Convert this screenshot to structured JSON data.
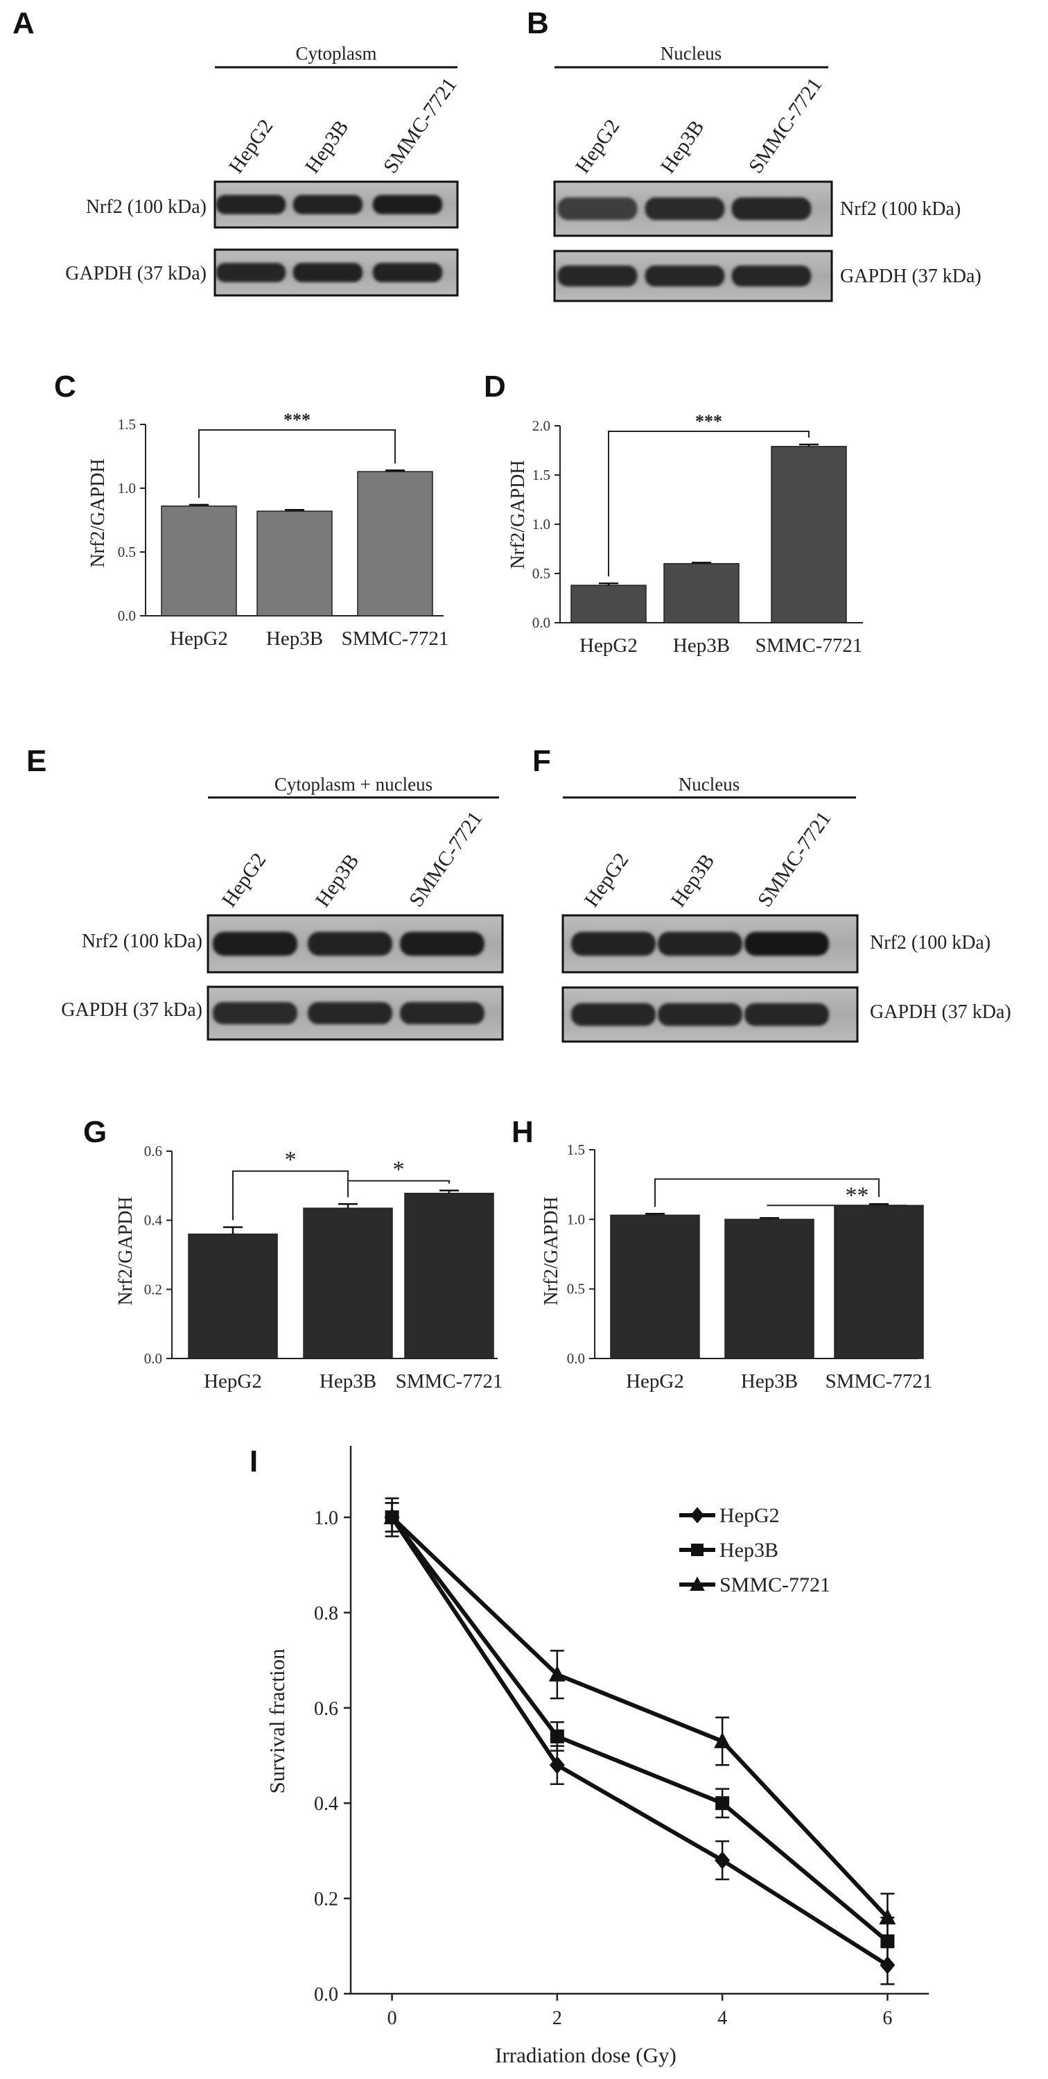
{
  "panels": {
    "A": {
      "letter": "A",
      "header": "Cytoplasm",
      "lanes": [
        "HepG2",
        "Hep3B",
        "SMMC-7721"
      ],
      "rows": [
        {
          "label": "Nrf2 (100 kDa)",
          "intensity": [
            0.85,
            0.85,
            0.9
          ]
        },
        {
          "label": "GAPDH (37 kDa)",
          "intensity": [
            0.8,
            0.85,
            0.85
          ]
        }
      ]
    },
    "B": {
      "letter": "B",
      "header": "Nucleus",
      "lanes": [
        "HepG2",
        "Hep3B",
        "SMMC-7721"
      ],
      "rows": [
        {
          "label": "Nrf2 (100 kDa)",
          "intensity": [
            0.55,
            0.75,
            0.8
          ]
        },
        {
          "label": "GAPDH (37 kDa)",
          "intensity": [
            0.8,
            0.8,
            0.8
          ]
        }
      ]
    },
    "E": {
      "letter": "E",
      "header": "Cytoplasm + nucleus",
      "lanes": [
        "HepG2",
        "Hep3B",
        "SMMC-7721"
      ],
      "rows": [
        {
          "label": "Nrf2 (100 kDa)",
          "intensity": [
            0.9,
            0.85,
            0.9
          ]
        },
        {
          "label": "GAPDH (37 kDa)",
          "intensity": [
            0.75,
            0.8,
            0.8
          ]
        }
      ]
    },
    "F": {
      "letter": "F",
      "header": "Nucleus",
      "lanes": [
        "HepG2",
        "Hep3B",
        "SMMC-7721"
      ],
      "rows": [
        {
          "label": "Nrf2 (100 kDa)",
          "intensity": [
            0.85,
            0.85,
            0.95
          ]
        },
        {
          "label": "GAPDH (37 kDa)",
          "intensity": [
            0.8,
            0.8,
            0.8
          ]
        }
      ]
    }
  },
  "chart_data": [
    {
      "id": "C",
      "letter": "C",
      "type": "bar",
      "categories": [
        "HepG2",
        "Hep3B",
        "SMMC-7721"
      ],
      "values": [
        0.86,
        0.82,
        1.13
      ],
      "errors": [
        0.01,
        0.01,
        0.01
      ],
      "ylabel": "Nrf2/GAPDH",
      "ylim": [
        0,
        1.5
      ],
      "yticks": [
        "0.0",
        "0.5",
        "1.0",
        "1.5"
      ],
      "bar_color": "#7a7a7a",
      "annotations": [
        {
          "from": 0,
          "to": 2,
          "text": "***"
        }
      ]
    },
    {
      "id": "D",
      "letter": "D",
      "type": "bar",
      "categories": [
        "HepG2",
        "Hep3B",
        "SMMC-7721"
      ],
      "values": [
        0.38,
        0.6,
        1.79
      ],
      "errors": [
        0.02,
        0.01,
        0.02
      ],
      "ylabel": "Nrf2/GAPDH",
      "ylim": [
        0,
        2.0
      ],
      "yticks": [
        "0.0",
        "0.5",
        "1.0",
        "1.5",
        "2.0"
      ],
      "bar_color": "#4a4a4a",
      "annotations": [
        {
          "from": 0,
          "to": 2,
          "text": "***"
        }
      ]
    },
    {
      "id": "G",
      "letter": "G",
      "type": "bar",
      "categories": [
        "HepG2",
        "Hep3B",
        "SMMC-7721"
      ],
      "values": [
        0.36,
        0.435,
        0.478
      ],
      "errors": [
        0.02,
        0.012,
        0.008
      ],
      "ylabel": "Nrf2/GAPDH",
      "ylim": [
        0,
        0.6
      ],
      "yticks": [
        "0.0",
        "0.2",
        "0.4",
        "0.6"
      ],
      "bar_color": "#2b2b2b",
      "annotations": [
        {
          "from": 0,
          "to": 1,
          "text": "*"
        },
        {
          "from": 1,
          "to": 2,
          "text": "*"
        }
      ]
    },
    {
      "id": "H",
      "letter": "H",
      "type": "bar",
      "categories": [
        "HepG2",
        "Hep3B",
        "SMMC-7721"
      ],
      "values": [
        1.03,
        1.0,
        1.1
      ],
      "errors": [
        0.01,
        0.01,
        0.01
      ],
      "ylabel": "Nrf2/GAPDH",
      "ylim": [
        0,
        1.5
      ],
      "yticks": [
        "0.0",
        "0.5",
        "1.0",
        "1.5"
      ],
      "bar_color": "#2b2b2b",
      "annotations": [
        {
          "from": 0,
          "to": 2,
          "text": "**"
        }
      ]
    },
    {
      "id": "I",
      "letter": "I",
      "type": "line",
      "x": [
        0,
        2,
        4,
        6
      ],
      "xticks": [
        "0",
        "2",
        "4",
        "6"
      ],
      "xlim": [
        -0.5,
        6.5
      ],
      "ylim": [
        0,
        1.15
      ],
      "yticks": [
        "0.0",
        "0.2",
        "0.4",
        "0.6",
        "0.8",
        "1.0"
      ],
      "xlabel": "Irradiation dose (Gy)",
      "ylabel": "Survival fraction",
      "legend_position": "top-right",
      "series": [
        {
          "name": "HepG2",
          "marker": "diamond",
          "values": [
            1.0,
            0.48,
            0.28,
            0.06
          ],
          "errors": [
            0.03,
            0.04,
            0.04,
            0.04
          ]
        },
        {
          "name": "Hep3B",
          "marker": "square",
          "values": [
            1.0,
            0.54,
            0.4,
            0.11
          ],
          "errors": [
            0.03,
            0.03,
            0.03,
            0.05
          ]
        },
        {
          "name": "SMMC-7721",
          "marker": "triangle",
          "values": [
            1.0,
            0.67,
            0.53,
            0.16
          ],
          "errors": [
            0.04,
            0.05,
            0.05,
            0.05
          ]
        }
      ]
    }
  ]
}
